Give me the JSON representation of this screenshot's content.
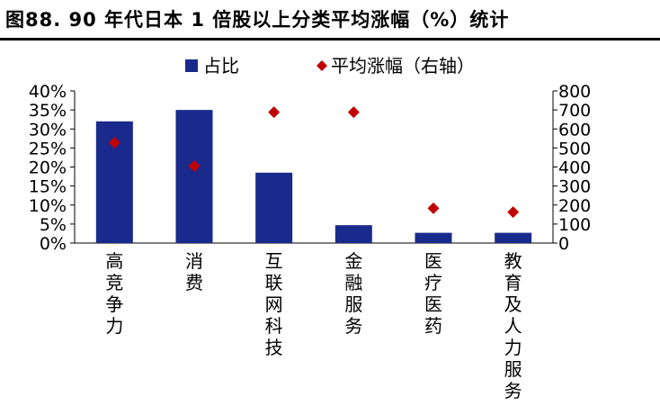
{
  "title": "图88. 90 年代日本 1 倍股以上分类平均涨幅（%）统计",
  "chart_data": {
    "type": "bar",
    "categories": [
      "高竞争力",
      "消费",
      "互联网科技",
      "金融服务",
      "医疗医药",
      "教育及人力服务"
    ],
    "series": [
      {
        "name": "占比",
        "kind": "bar",
        "axis": "left",
        "color": "#1a2a8c",
        "values": [
          0.32,
          0.35,
          0.185,
          0.047,
          0.027,
          0.027
        ]
      },
      {
        "name": "平均涨幅（右轴）",
        "kind": "scatter",
        "axis": "right",
        "color": "#c00000",
        "values": [
          528,
          405,
          688,
          688,
          183,
          163
        ]
      }
    ],
    "y_left": {
      "min": 0,
      "max": 0.4,
      "step": 0.05,
      "tick_labels": [
        "0%",
        "5%",
        "10%",
        "15%",
        "20%",
        "25%",
        "30%",
        "35%",
        "40%"
      ]
    },
    "y_right": {
      "min": 0,
      "max": 800,
      "step": 100,
      "tick_labels": [
        "0",
        "100",
        "200",
        "300",
        "400",
        "500",
        "600",
        "700",
        "800"
      ]
    },
    "legend": {
      "position": "top",
      "entries": [
        "占比",
        "平均涨幅（右轴）"
      ]
    }
  }
}
